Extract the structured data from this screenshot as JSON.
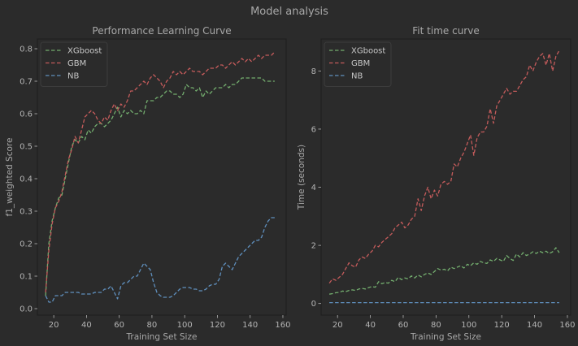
{
  "figure": {
    "suptitle": "Model analysis",
    "colors": {
      "background": "#2b2b2b",
      "panel": "#2b2b2b",
      "axis_text": "#a8a8a8",
      "tick_text": "#b4b4b4",
      "spine": "#1c1c1c",
      "legend_frame": "#3c3c3c"
    }
  },
  "chart_data": [
    {
      "type": "line",
      "title": "Performance Learning Curve",
      "xlabel": "Training Set Size",
      "ylabel": "f1_weighted Score",
      "xlim": [
        10,
        162
      ],
      "ylim": [
        -0.02,
        0.83
      ],
      "xticks": [
        20,
        40,
        60,
        80,
        100,
        120,
        140,
        160
      ],
      "yticks": [
        0.0,
        0.1,
        0.2,
        0.3,
        0.4,
        0.5,
        0.6,
        0.7,
        0.8
      ],
      "legend": "upper-left",
      "grid": false,
      "series": [
        {
          "name": "XGboost",
          "color": "#73ad6e",
          "x": [
            15,
            17,
            19,
            21,
            23,
            25,
            27,
            29,
            31,
            33,
            35,
            37,
            39,
            41,
            43,
            45,
            47,
            49,
            51,
            53,
            55,
            57,
            59,
            61,
            63,
            65,
            67,
            69,
            71,
            73,
            75,
            77,
            79,
            81,
            83,
            85,
            87,
            89,
            91,
            93,
            95,
            97,
            99,
            101,
            103,
            105,
            107,
            109,
            111,
            113,
            115,
            117,
            119,
            121,
            123,
            125,
            127,
            129,
            131,
            133,
            135,
            137,
            139,
            141,
            143,
            145,
            147,
            149,
            151,
            153,
            155
          ],
          "values": [
            0.04,
            0.2,
            0.27,
            0.31,
            0.34,
            0.35,
            0.4,
            0.45,
            0.5,
            0.52,
            0.51,
            0.53,
            0.52,
            0.55,
            0.54,
            0.56,
            0.57,
            0.57,
            0.56,
            0.57,
            0.58,
            0.6,
            0.62,
            0.59,
            0.61,
            0.6,
            0.61,
            0.6,
            0.6,
            0.61,
            0.6,
            0.64,
            0.64,
            0.64,
            0.65,
            0.65,
            0.66,
            0.67,
            0.67,
            0.66,
            0.66,
            0.65,
            0.66,
            0.69,
            0.68,
            0.68,
            0.67,
            0.68,
            0.65,
            0.67,
            0.66,
            0.67,
            0.68,
            0.68,
            0.68,
            0.69,
            0.68,
            0.69,
            0.69,
            0.7,
            0.71,
            0.71,
            0.71,
            0.71,
            0.71,
            0.71,
            0.71,
            0.7,
            0.7,
            0.7,
            0.7
          ]
        },
        {
          "name": "GBM",
          "color": "#c45b5b",
          "x": [
            15,
            17,
            19,
            21,
            23,
            25,
            27,
            29,
            31,
            33,
            35,
            37,
            39,
            41,
            43,
            45,
            47,
            49,
            51,
            53,
            55,
            57,
            59,
            61,
            63,
            65,
            67,
            69,
            71,
            73,
            75,
            77,
            79,
            81,
            83,
            85,
            87,
            89,
            91,
            93,
            95,
            97,
            99,
            101,
            103,
            105,
            107,
            109,
            111,
            113,
            115,
            117,
            119,
            121,
            123,
            125,
            127,
            129,
            131,
            133,
            135,
            137,
            139,
            141,
            143,
            145,
            147,
            149,
            151,
            153,
            155
          ],
          "values": [
            0.05,
            0.18,
            0.26,
            0.31,
            0.33,
            0.36,
            0.41,
            0.46,
            0.49,
            0.53,
            0.51,
            0.55,
            0.59,
            0.6,
            0.61,
            0.6,
            0.58,
            0.57,
            0.59,
            0.58,
            0.61,
            0.63,
            0.61,
            0.63,
            0.62,
            0.64,
            0.67,
            0.67,
            0.68,
            0.69,
            0.7,
            0.69,
            0.71,
            0.72,
            0.71,
            0.7,
            0.68,
            0.7,
            0.71,
            0.73,
            0.72,
            0.73,
            0.72,
            0.73,
            0.74,
            0.73,
            0.73,
            0.73,
            0.72,
            0.73,
            0.74,
            0.74,
            0.74,
            0.75,
            0.75,
            0.74,
            0.75,
            0.76,
            0.75,
            0.76,
            0.77,
            0.76,
            0.77,
            0.76,
            0.77,
            0.78,
            0.77,
            0.78,
            0.78,
            0.78,
            0.79
          ]
        },
        {
          "name": "NB",
          "color": "#5f8fbd",
          "x": [
            15,
            17,
            19,
            21,
            23,
            25,
            27,
            29,
            31,
            33,
            35,
            37,
            39,
            41,
            43,
            45,
            47,
            49,
            51,
            53,
            55,
            57,
            59,
            61,
            63,
            65,
            67,
            69,
            71,
            73,
            75,
            77,
            79,
            81,
            83,
            85,
            87,
            89,
            91,
            93,
            95,
            97,
            99,
            101,
            103,
            105,
            107,
            109,
            111,
            113,
            115,
            117,
            119,
            121,
            123,
            125,
            127,
            129,
            131,
            133,
            135,
            137,
            139,
            141,
            143,
            145,
            147,
            149,
            151,
            153,
            155
          ],
          "values": [
            0.04,
            0.02,
            0.02,
            0.04,
            0.04,
            0.04,
            0.05,
            0.05,
            0.05,
            0.05,
            0.05,
            0.045,
            0.045,
            0.045,
            0.045,
            0.05,
            0.05,
            0.05,
            0.06,
            0.06,
            0.07,
            0.05,
            0.03,
            0.07,
            0.08,
            0.08,
            0.09,
            0.1,
            0.1,
            0.12,
            0.14,
            0.13,
            0.12,
            0.08,
            0.05,
            0.04,
            0.035,
            0.035,
            0.035,
            0.04,
            0.05,
            0.06,
            0.065,
            0.065,
            0.065,
            0.06,
            0.06,
            0.055,
            0.055,
            0.06,
            0.07,
            0.075,
            0.075,
            0.09,
            0.13,
            0.14,
            0.13,
            0.12,
            0.14,
            0.16,
            0.17,
            0.18,
            0.19,
            0.2,
            0.21,
            0.21,
            0.22,
            0.25,
            0.27,
            0.28,
            0.28
          ]
        }
      ]
    },
    {
      "type": "line",
      "title": "Fit time curve",
      "xlabel": "Training Set Size",
      "ylabel": "Time (seconds)",
      "xlim": [
        10,
        162
      ],
      "ylim": [
        -0.4,
        9.1
      ],
      "xticks": [
        20,
        40,
        60,
        80,
        100,
        120,
        140,
        160
      ],
      "yticks": [
        0,
        2,
        4,
        6,
        8
      ],
      "legend": "upper-left",
      "grid": false,
      "series": [
        {
          "name": "XGboost",
          "color": "#73ad6e",
          "x": [
            15,
            17,
            19,
            21,
            23,
            25,
            27,
            29,
            31,
            33,
            35,
            37,
            39,
            41,
            43,
            45,
            47,
            49,
            51,
            53,
            55,
            57,
            59,
            61,
            63,
            65,
            67,
            69,
            71,
            73,
            75,
            77,
            79,
            81,
            83,
            85,
            87,
            89,
            91,
            93,
            95,
            97,
            99,
            101,
            103,
            105,
            107,
            109,
            111,
            113,
            115,
            117,
            119,
            121,
            123,
            125,
            127,
            129,
            131,
            133,
            135,
            137,
            139,
            141,
            143,
            145,
            147,
            149,
            151,
            153,
            155
          ],
          "values": [
            0.32,
            0.34,
            0.37,
            0.38,
            0.43,
            0.41,
            0.45,
            0.47,
            0.45,
            0.5,
            0.52,
            0.5,
            0.55,
            0.58,
            0.56,
            0.75,
            0.68,
            0.72,
            0.7,
            0.8,
            0.75,
            0.9,
            0.82,
            0.88,
            0.85,
            0.95,
            0.88,
            0.98,
            0.92,
            1.0,
            1.05,
            1.0,
            1.1,
            1.2,
            1.15,
            1.18,
            1.12,
            1.25,
            1.2,
            1.25,
            1.3,
            1.22,
            1.35,
            1.3,
            1.4,
            1.35,
            1.45,
            1.4,
            1.38,
            1.5,
            1.45,
            1.55,
            1.5,
            1.45,
            1.65,
            1.55,
            1.48,
            1.7,
            1.6,
            1.75,
            1.65,
            1.7,
            1.78,
            1.72,
            1.8,
            1.75,
            1.8,
            1.72,
            1.78,
            1.92,
            1.75
          ]
        },
        {
          "name": "GBM",
          "color": "#c45b5b",
          "x": [
            15,
            17,
            19,
            21,
            23,
            25,
            27,
            29,
            31,
            33,
            35,
            37,
            39,
            41,
            43,
            45,
            47,
            49,
            51,
            53,
            55,
            57,
            59,
            61,
            63,
            65,
            67,
            69,
            71,
            73,
            75,
            77,
            79,
            81,
            83,
            85,
            87,
            89,
            91,
            93,
            95,
            97,
            99,
            101,
            103,
            105,
            107,
            109,
            111,
            113,
            115,
            117,
            119,
            121,
            123,
            125,
            127,
            129,
            131,
            133,
            135,
            137,
            139,
            141,
            143,
            145,
            147,
            149,
            151,
            153,
            155
          ],
          "values": [
            0.7,
            0.85,
            0.8,
            0.9,
            1.0,
            1.2,
            1.4,
            1.3,
            1.25,
            1.5,
            1.6,
            1.55,
            1.7,
            1.8,
            2.0,
            1.95,
            2.1,
            2.2,
            2.3,
            2.4,
            2.6,
            2.7,
            2.8,
            2.6,
            2.7,
            2.9,
            3.0,
            3.6,
            3.2,
            3.7,
            4.0,
            3.6,
            3.9,
            3.7,
            4.1,
            4.2,
            4.1,
            4.2,
            4.8,
            4.7,
            5.0,
            5.2,
            5.5,
            5.8,
            5.1,
            5.7,
            5.9,
            5.9,
            6.1,
            6.7,
            6.2,
            6.8,
            7.0,
            7.2,
            7.4,
            7.2,
            7.3,
            7.3,
            7.5,
            7.7,
            7.8,
            8.2,
            8.0,
            8.3,
            8.5,
            8.6,
            8.2,
            8.6,
            8.0,
            8.5,
            8.7
          ]
        },
        {
          "name": "NB",
          "color": "#5f8fbd",
          "x": [
            15,
            17,
            19,
            21,
            23,
            25,
            27,
            29,
            31,
            33,
            35,
            37,
            39,
            41,
            43,
            45,
            47,
            49,
            51,
            53,
            55,
            57,
            59,
            61,
            63,
            65,
            67,
            69,
            71,
            73,
            75,
            77,
            79,
            81,
            83,
            85,
            87,
            89,
            91,
            93,
            95,
            97,
            99,
            101,
            103,
            105,
            107,
            109,
            111,
            113,
            115,
            117,
            119,
            121,
            123,
            125,
            127,
            129,
            131,
            133,
            135,
            137,
            139,
            141,
            143,
            145,
            147,
            149,
            151,
            153,
            155
          ],
          "values": [
            0.03,
            0.03,
            0.03,
            0.03,
            0.03,
            0.03,
            0.03,
            0.03,
            0.03,
            0.03,
            0.03,
            0.03,
            0.03,
            0.03,
            0.03,
            0.03,
            0.03,
            0.03,
            0.03,
            0.03,
            0.03,
            0.03,
            0.03,
            0.03,
            0.03,
            0.03,
            0.03,
            0.03,
            0.03,
            0.03,
            0.03,
            0.03,
            0.03,
            0.03,
            0.03,
            0.03,
            0.03,
            0.03,
            0.03,
            0.03,
            0.03,
            0.03,
            0.03,
            0.03,
            0.03,
            0.03,
            0.03,
            0.03,
            0.03,
            0.03,
            0.03,
            0.03,
            0.03,
            0.03,
            0.03,
            0.03,
            0.03,
            0.03,
            0.03,
            0.03,
            0.03,
            0.03,
            0.03,
            0.03,
            0.03,
            0.03,
            0.03,
            0.03,
            0.03,
            0.03,
            0.03
          ]
        }
      ]
    }
  ]
}
